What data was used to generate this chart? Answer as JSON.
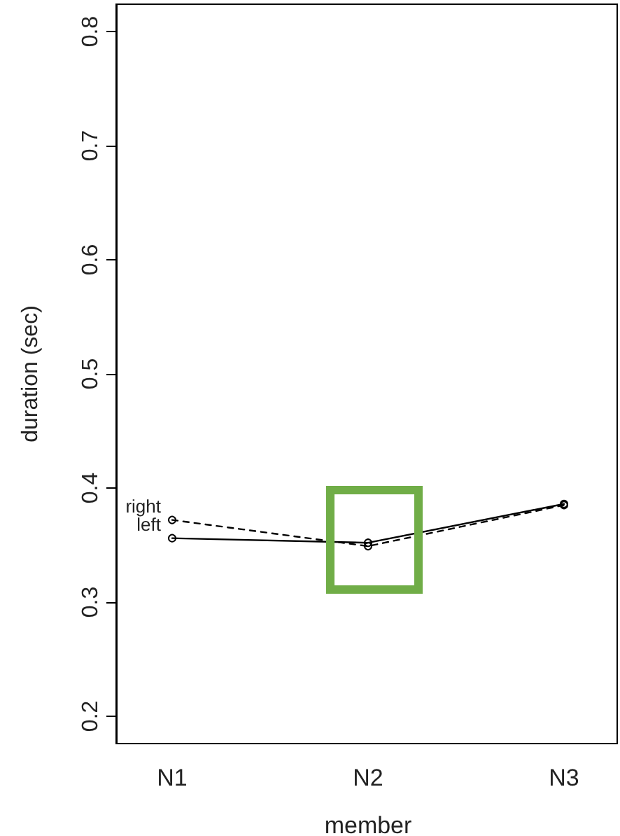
{
  "chart_data": {
    "type": "line",
    "xlabel": "member",
    "ylabel": "duration (sec)",
    "categories": [
      "N1",
      "N2",
      "N3"
    ],
    "series": [
      {
        "name": "right",
        "color": "#000000",
        "line_style": "dashed",
        "values": [
          0.372,
          0.349,
          0.385
        ]
      },
      {
        "name": "left",
        "color": "#000000",
        "line_style": "solid",
        "values": [
          0.356,
          0.352,
          0.386
        ]
      }
    ],
    "ylim": [
      0.176,
      0.824
    ],
    "yticks": [
      0.2,
      0.3,
      0.4,
      0.5,
      0.6,
      0.7,
      0.8
    ],
    "marker": "circle",
    "grid": false
  }
}
